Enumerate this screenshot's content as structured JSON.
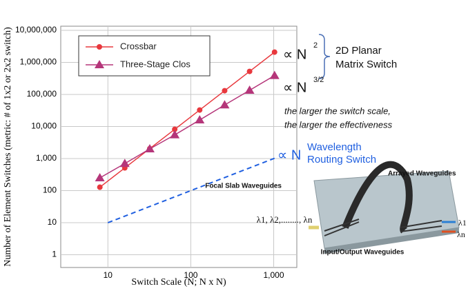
{
  "chart_data": {
    "type": "line",
    "x_label": "Switch Scale (N; N x N)",
    "y_label": "Number of Element Switches (metric: # of 1x2 or 2x2 switch)",
    "log_x": true,
    "log_y": true,
    "grid": true,
    "legend": "top-left",
    "xlim": [
      2.7,
      1900
    ],
    "ylim": [
      0.4,
      13500000
    ],
    "xticks": [
      10,
      100,
      {
        "value": 1000,
        "label": "1,000"
      }
    ],
    "yticks": [
      1,
      10,
      100,
      {
        "value": 1000,
        "label": "1,000"
      },
      {
        "value": 10000,
        "label": "10,000"
      },
      {
        "value": 100000,
        "label": "100,000"
      },
      {
        "value": 1000000,
        "label": "1,000,000"
      },
      {
        "value": 10000000,
        "label": "10,000,000"
      }
    ],
    "x": [
      8,
      16,
      32,
      64,
      128,
      256,
      512,
      1024
    ],
    "series": [
      {
        "name": "Crossbar",
        "color": "#e8383d",
        "marker": "circle",
        "values": [
          128,
          512,
          2048,
          8192,
          32768,
          131072,
          524288,
          2097152
        ]
      },
      {
        "name": "Three-Stage Clos",
        "color": "#b5367a",
        "marker": "triangle",
        "values": [
          250,
          700,
          2000,
          5500,
          16000,
          47000,
          135000,
          390000
        ]
      }
    ],
    "dashed_line": {
      "color": "#1f5fe0",
      "x": [
        10,
        1024
      ],
      "values": [
        10,
        1024
      ]
    },
    "annotations": [
      "∝ N",
      "2",
      "∝ N",
      "3/2",
      "2D Planar",
      "Matrix Switch",
      "the larger the switch scale,",
      "the larger the effectiveness",
      "∝ N",
      "Wavelength",
      "Routing Switch",
      "Arrayed Waveguides",
      "Focal Slab Waveguides",
      "λ1, λ2,........, λn",
      "λ1",
      "λn",
      "Input/Output Waveguides"
    ]
  }
}
